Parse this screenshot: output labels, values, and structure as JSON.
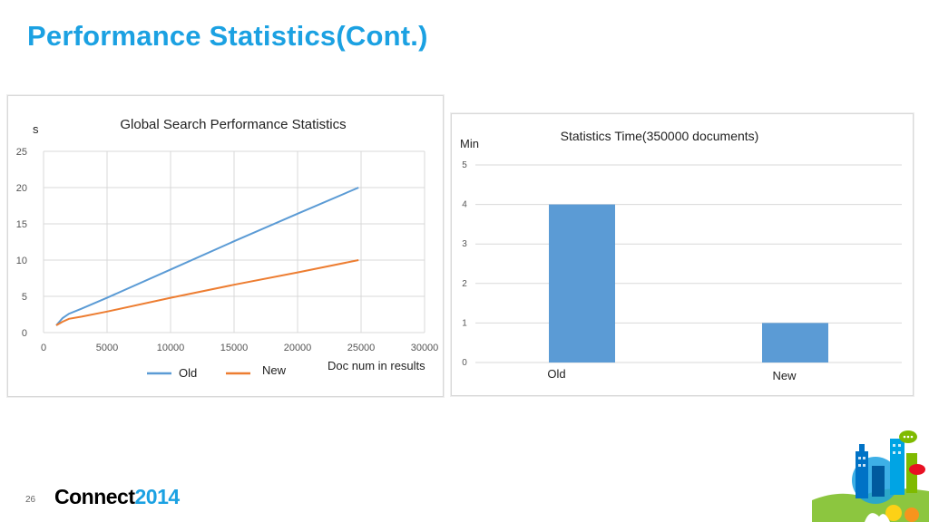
{
  "slide": {
    "title": "Performance Statistics(Cont.)",
    "page_number": "26",
    "brand_name": "Connect",
    "brand_year": "2014"
  },
  "colors": {
    "title": "#1ba1e2",
    "old_series": "#5b9bd5",
    "new_series": "#ed7d31",
    "bar": "#5b9bd5"
  },
  "chart_data": [
    {
      "type": "line",
      "title": "Global Search Performance Statistics",
      "ylabel": "s",
      "xlabel": "Doc num in results",
      "xlim": [
        0,
        30000
      ],
      "ylim": [
        0,
        25
      ],
      "xticks": [
        0,
        5000,
        10000,
        15000,
        20000,
        25000,
        30000
      ],
      "yticks": [
        0,
        5,
        10,
        15,
        20,
        25
      ],
      "grid": true,
      "legend": "bottom",
      "series": [
        {
          "name": "Old",
          "x": [
            1000,
            1500,
            2000,
            3000,
            5000,
            10000,
            15000,
            20000,
            24800
          ],
          "y": [
            1,
            2.0,
            2.6,
            3.3,
            4.8,
            8.7,
            12.6,
            16.4,
            20
          ]
        },
        {
          "name": "New",
          "x": [
            1000,
            1500,
            2000,
            3000,
            5000,
            10000,
            15000,
            20000,
            24800
          ],
          "y": [
            1,
            1.5,
            1.9,
            2.2,
            2.9,
            4.8,
            6.6,
            8.3,
            10
          ]
        }
      ]
    },
    {
      "type": "bar",
      "title": "Statistics Time(350000 documents)",
      "ylabel": "Min",
      "xlabel": "",
      "ylim": [
        0,
        5
      ],
      "yticks": [
        0,
        1,
        2,
        3,
        4,
        5
      ],
      "grid": true,
      "categories": [
        "Old",
        "New"
      ],
      "values": [
        4,
        1
      ]
    }
  ]
}
